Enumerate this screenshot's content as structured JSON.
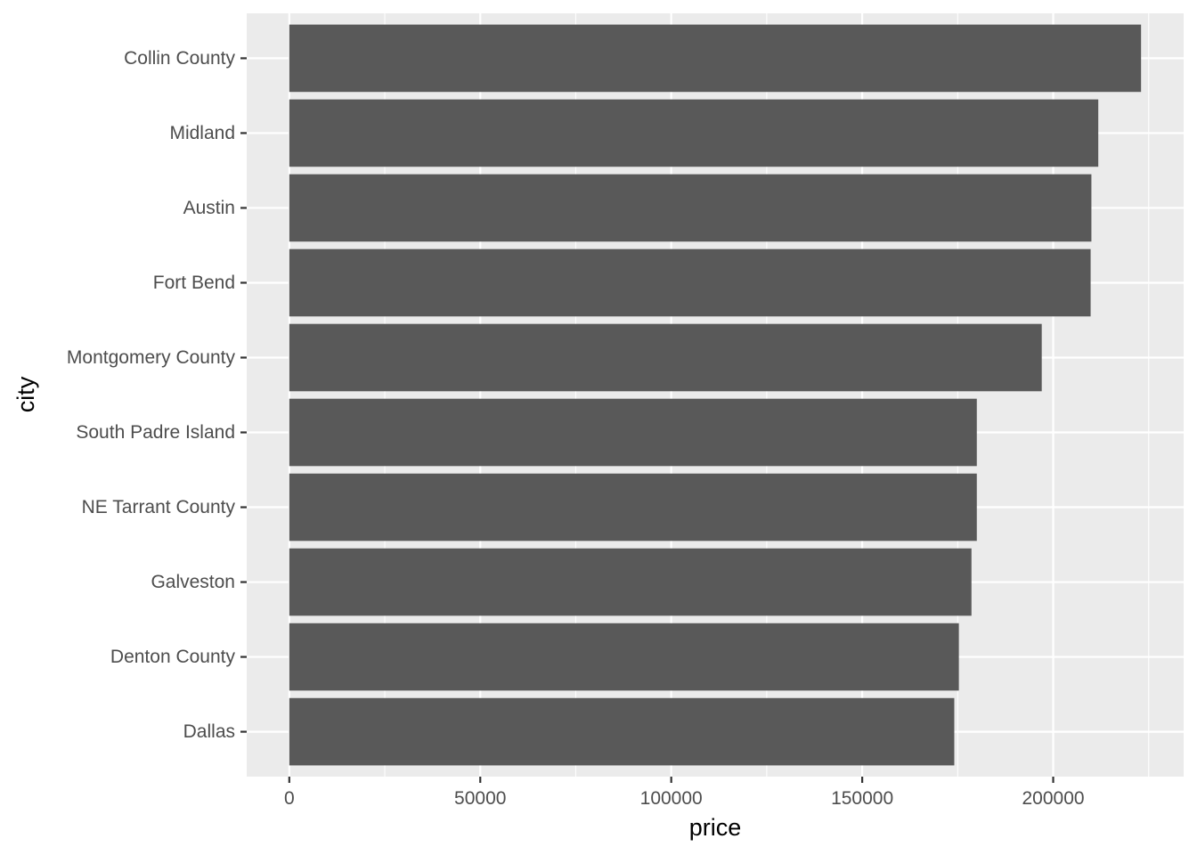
{
  "chart_data": {
    "type": "bar",
    "orientation": "horizontal",
    "xlabel": "price",
    "ylabel": "city",
    "categories": [
      "Collin County",
      "Midland",
      "Austin",
      "Fort Bend",
      "Montgomery County",
      "South Padre Island",
      "NE Tarrant County",
      "Galveston",
      "Denton County",
      "Dallas"
    ],
    "values": [
      223000,
      211800,
      210000,
      209800,
      197000,
      180000,
      180000,
      178600,
      175300,
      174100
    ],
    "x_ticks": [
      0,
      50000,
      100000,
      150000,
      200000
    ],
    "x_tick_labels": [
      "0",
      "50000",
      "100000",
      "150000",
      "200000"
    ],
    "xlim": [
      -11150,
      234150
    ],
    "grid": true,
    "colors": {
      "panel_background": "#EBEBEB",
      "grid": "#FFFFFF",
      "bar": "#595959",
      "tick_text": "#4D4D4D",
      "axis_title": "#000000"
    }
  }
}
